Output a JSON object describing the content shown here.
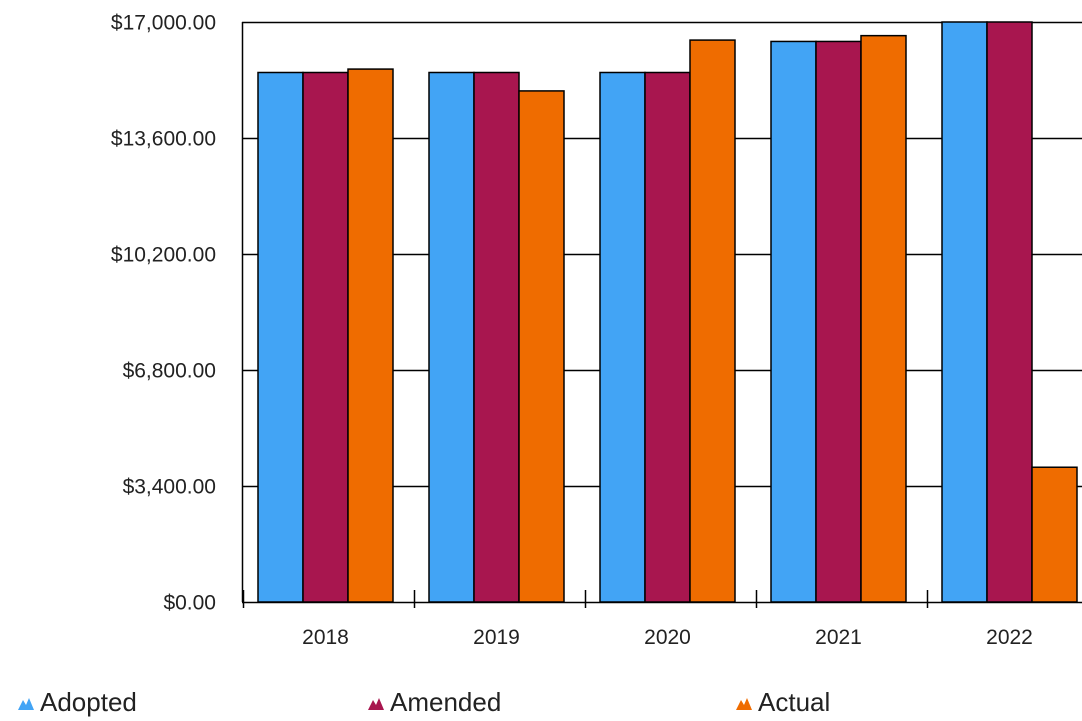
{
  "chart_data": {
    "type": "bar",
    "categories": [
      "2018",
      "2019",
      "2020",
      "2021",
      "2022"
    ],
    "series": [
      {
        "name": "Adopted",
        "color": "#42a4f5",
        "values": [
          15520,
          15520,
          15520,
          16430,
          17000
        ]
      },
      {
        "name": "Amended",
        "color": "#a8164f",
        "values": [
          15520,
          15520,
          15520,
          16430,
          17000
        ]
      },
      {
        "name": "Actual",
        "color": "#ef6c00",
        "values": [
          15620,
          14980,
          16470,
          16600,
          3950
        ]
      }
    ],
    "ylim": [
      0,
      17000
    ],
    "y_ticks": [
      0,
      3400,
      6800,
      10200,
      13600,
      17000
    ],
    "y_tick_labels": [
      "$0.00",
      "$3,400.00",
      "$6,800.00",
      "$10,200.00",
      "$13,600.00",
      "$17,000.00"
    ],
    "grid": true,
    "legend_position": "bottom"
  }
}
